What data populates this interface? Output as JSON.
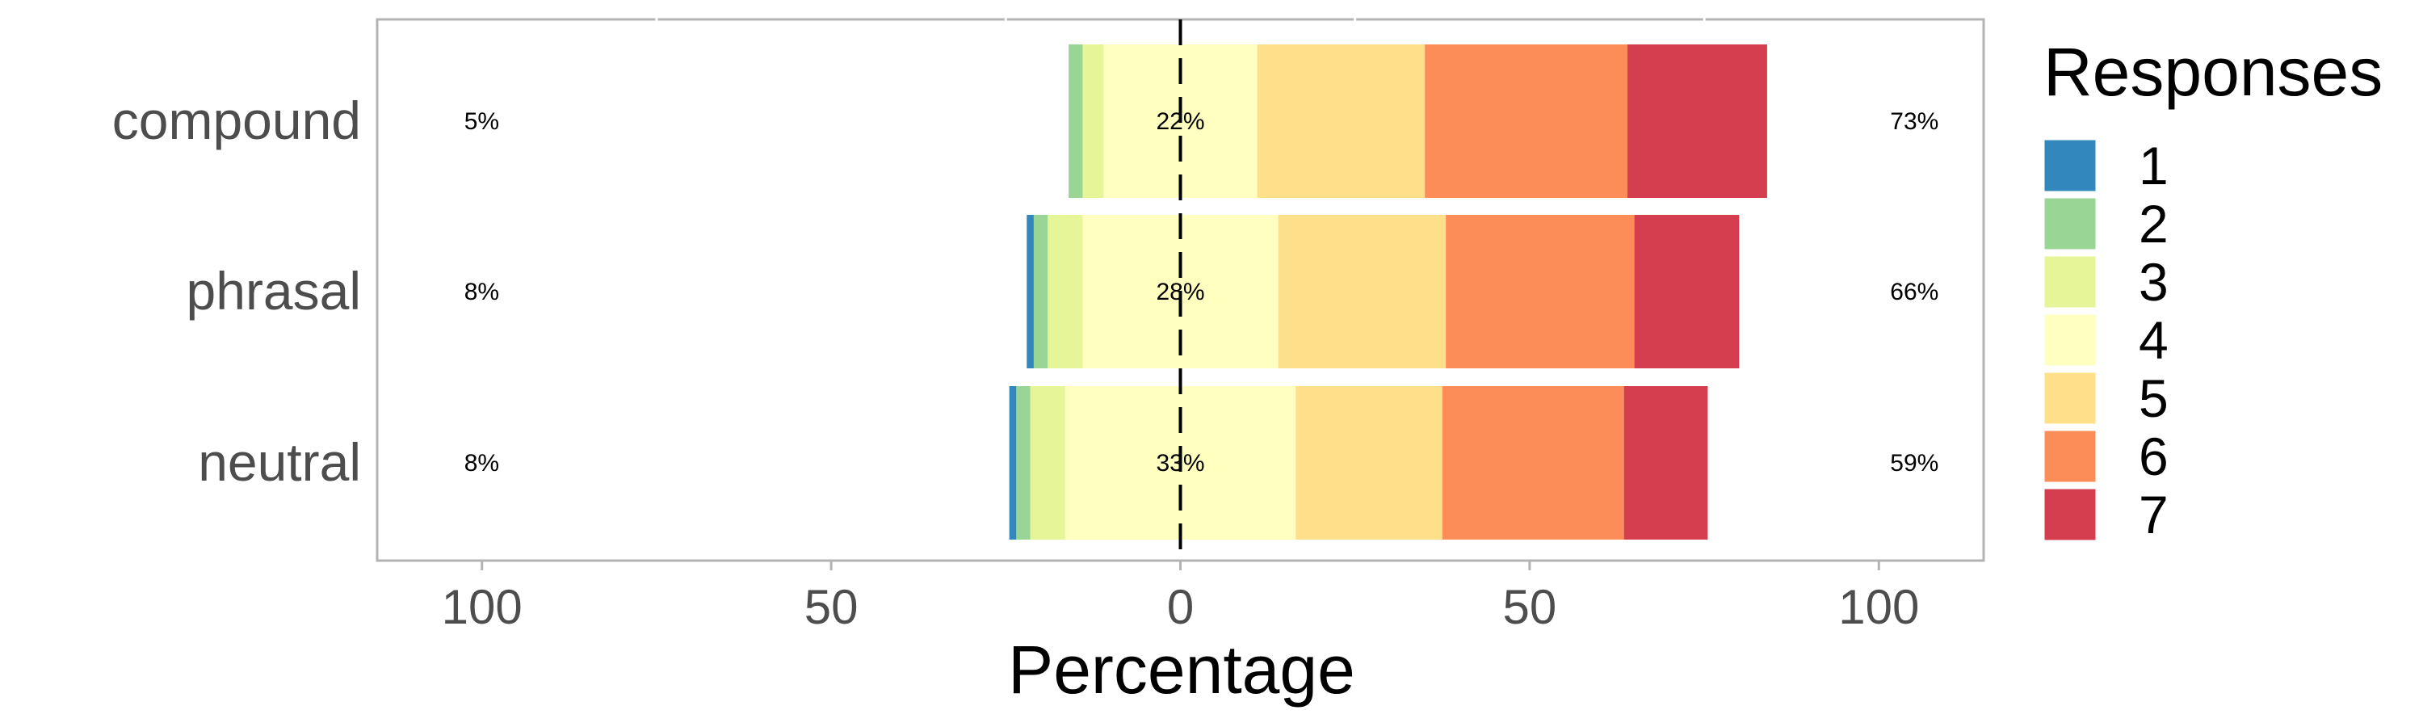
{
  "chart_data": {
    "type": "bar",
    "orientation": "horizontal-diverging-stacked",
    "xlabel": "Percentage",
    "ylabel": "",
    "xlim": [
      -115,
      115
    ],
    "x_ticks": [
      -100,
      -50,
      0,
      50,
      100
    ],
    "x_tick_labels": [
      "100",
      "50",
      "0",
      "50",
      "100"
    ],
    "grid": false,
    "legend_title": "Responses",
    "legend_position": "right",
    "categories": [
      "compound",
      "phrasal",
      "neutral"
    ],
    "series": [
      {
        "name": "1",
        "color": "#3288bd",
        "values": [
          0,
          1,
          1
        ]
      },
      {
        "name": "2",
        "color": "#99d594",
        "values": [
          2,
          2,
          2
        ]
      },
      {
        "name": "3",
        "color": "#e6f598",
        "values": [
          3,
          5,
          5
        ]
      },
      {
        "name": "4",
        "color": "#ffffbf",
        "values": [
          22,
          28,
          33
        ]
      },
      {
        "name": "5",
        "color": "#fee08b",
        "values": [
          24,
          24,
          21
        ]
      },
      {
        "name": "6",
        "color": "#fc8d59",
        "values": [
          29,
          27,
          26
        ]
      },
      {
        "name": "7",
        "color": "#d53e4f",
        "values": [
          20,
          15,
          12
        ]
      }
    ],
    "annotations": {
      "low": [
        "5%",
        "8%",
        "8%"
      ],
      "neutral": [
        "22%",
        "28%",
        "33%"
      ],
      "high": [
        "73%",
        "66%",
        "59%"
      ]
    }
  }
}
